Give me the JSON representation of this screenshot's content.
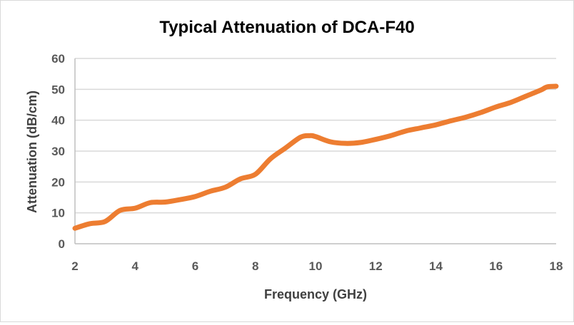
{
  "chart_data": {
    "type": "line",
    "title": "Typical Attenuation of DCA-F40",
    "xlabel": "Frequency (GHz)",
    "ylabel": "Attenuation (dB/cm)",
    "xlim": [
      2,
      18
    ],
    "ylim": [
      0,
      60
    ],
    "xticks": [
      2,
      4,
      6,
      8,
      10,
      12,
      14,
      16,
      18
    ],
    "yticks": [
      0,
      10,
      20,
      30,
      40,
      50,
      60
    ],
    "grid": "horizontal",
    "legend": "none",
    "color": "#ED7D31",
    "series": [
      {
        "x": [
          2,
          2.5,
          3,
          3.5,
          4,
          4.5,
          5,
          5.5,
          6,
          6.5,
          7,
          7.5,
          8,
          8.5,
          9,
          9.5,
          9.8,
          10,
          10.5,
          11,
          11.5,
          12,
          12.5,
          13,
          13.5,
          14,
          14.5,
          15,
          15.5,
          16,
          16.5,
          17,
          17.5,
          17.7,
          18
        ],
        "y": [
          5,
          6.5,
          7.2,
          10.8,
          11.5,
          13.3,
          13.5,
          14.3,
          15.3,
          17,
          18.3,
          21,
          22.5,
          27.5,
          31,
          34.5,
          35,
          34.7,
          33,
          32.5,
          32.8,
          33.8,
          35,
          36.5,
          37.5,
          38.5,
          39.8,
          41,
          42.5,
          44.3,
          45.8,
          47.8,
          49.8,
          50.8,
          51
        ]
      }
    ]
  }
}
